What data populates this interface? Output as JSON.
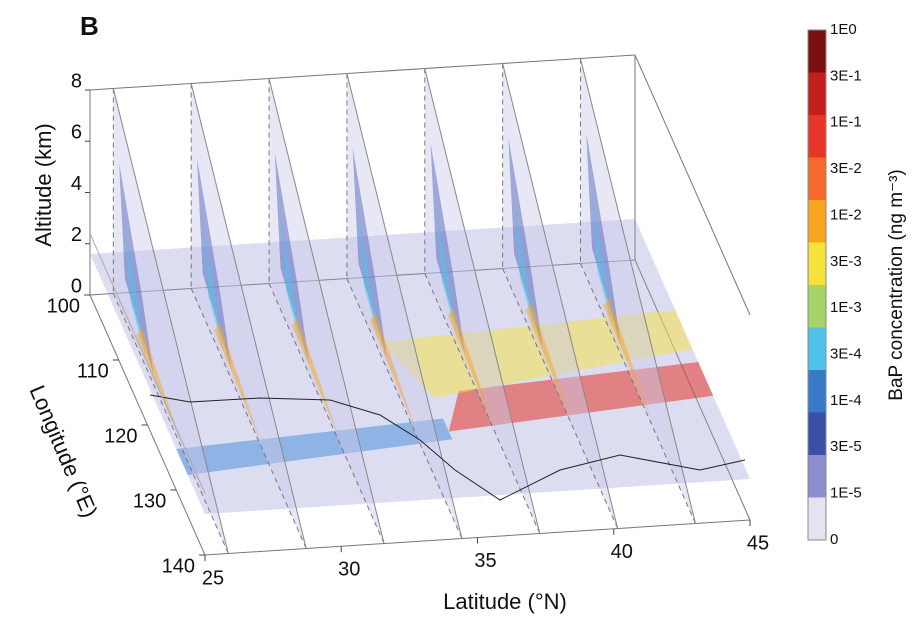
{
  "chart_data": {
    "type": "slice3d",
    "panel_label": "B",
    "xlabel": "Latitude (°N)",
    "xlim": [
      25,
      45
    ],
    "xticks": [
      25,
      30,
      35,
      40,
      45
    ],
    "ylabel": "Longitude (°E)",
    "ylim": [
      100,
      140
    ],
    "yticks": [
      100,
      110,
      120,
      130,
      140
    ],
    "zlabel": "Altitude (km)",
    "zlim": [
      0,
      8
    ],
    "zticks": [
      0,
      2,
      4,
      6,
      8
    ],
    "colorbar": {
      "label": "BaP concentration (ng m⁻³)",
      "ticks": [
        "1E0",
        "3E-1",
        "1E-1",
        "3E-2",
        "1E-2",
        "3E-3",
        "1E-3",
        "3E-4",
        "1E-4",
        "3E-5",
        "1E-5",
        "0"
      ],
      "colors": [
        "#7a1010",
        "#c41e1e",
        "#e8352a",
        "#f46a2a",
        "#f7a51f",
        "#f5e23c",
        "#a6d46a",
        "#4fc4e8",
        "#3a78c8",
        "#3a4fa8",
        "#8b8fcf",
        "#e4e3f2"
      ]
    }
  }
}
